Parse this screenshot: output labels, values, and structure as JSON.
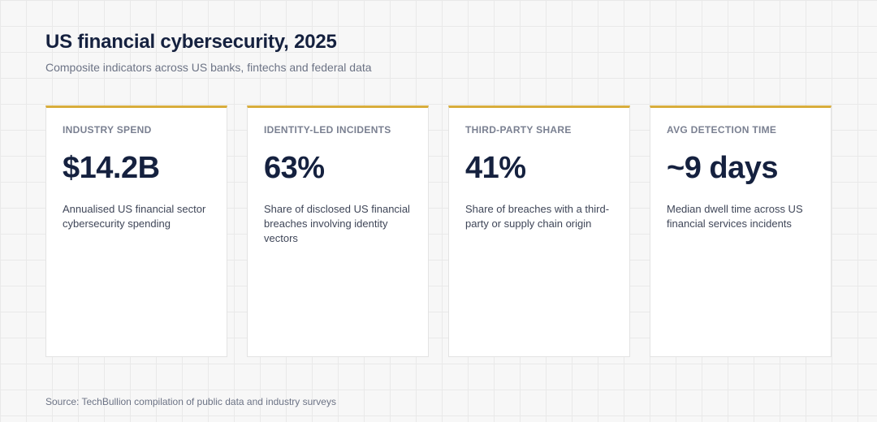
{
  "header": {
    "title": "US financial cybersecurity, 2025",
    "subtitle": "Composite indicators across US banks, fintechs and federal data"
  },
  "cards": [
    {
      "label": "INDUSTRY SPEND",
      "value": "$14.2B",
      "description": "Annualised US financial sector cybersecurity spending"
    },
    {
      "label": "IDENTITY-LED INCIDENTS",
      "value": "63%",
      "description": "Share of disclosed US financial breaches involving identity vectors"
    },
    {
      "label": "THIRD-PARTY SHARE",
      "value": "41%",
      "description": "Share of breaches with a third-party or supply chain origin"
    },
    {
      "label": "AVG DETECTION TIME",
      "value": "~9 days",
      "description": "Median dwell time across US financial services incidents"
    }
  ],
  "footer": {
    "source": "Source: TechBullion compilation of public data and industry surveys"
  },
  "colors": {
    "accent": "#d8ad3c",
    "title": "#15213f",
    "muted": "#6c7385"
  }
}
